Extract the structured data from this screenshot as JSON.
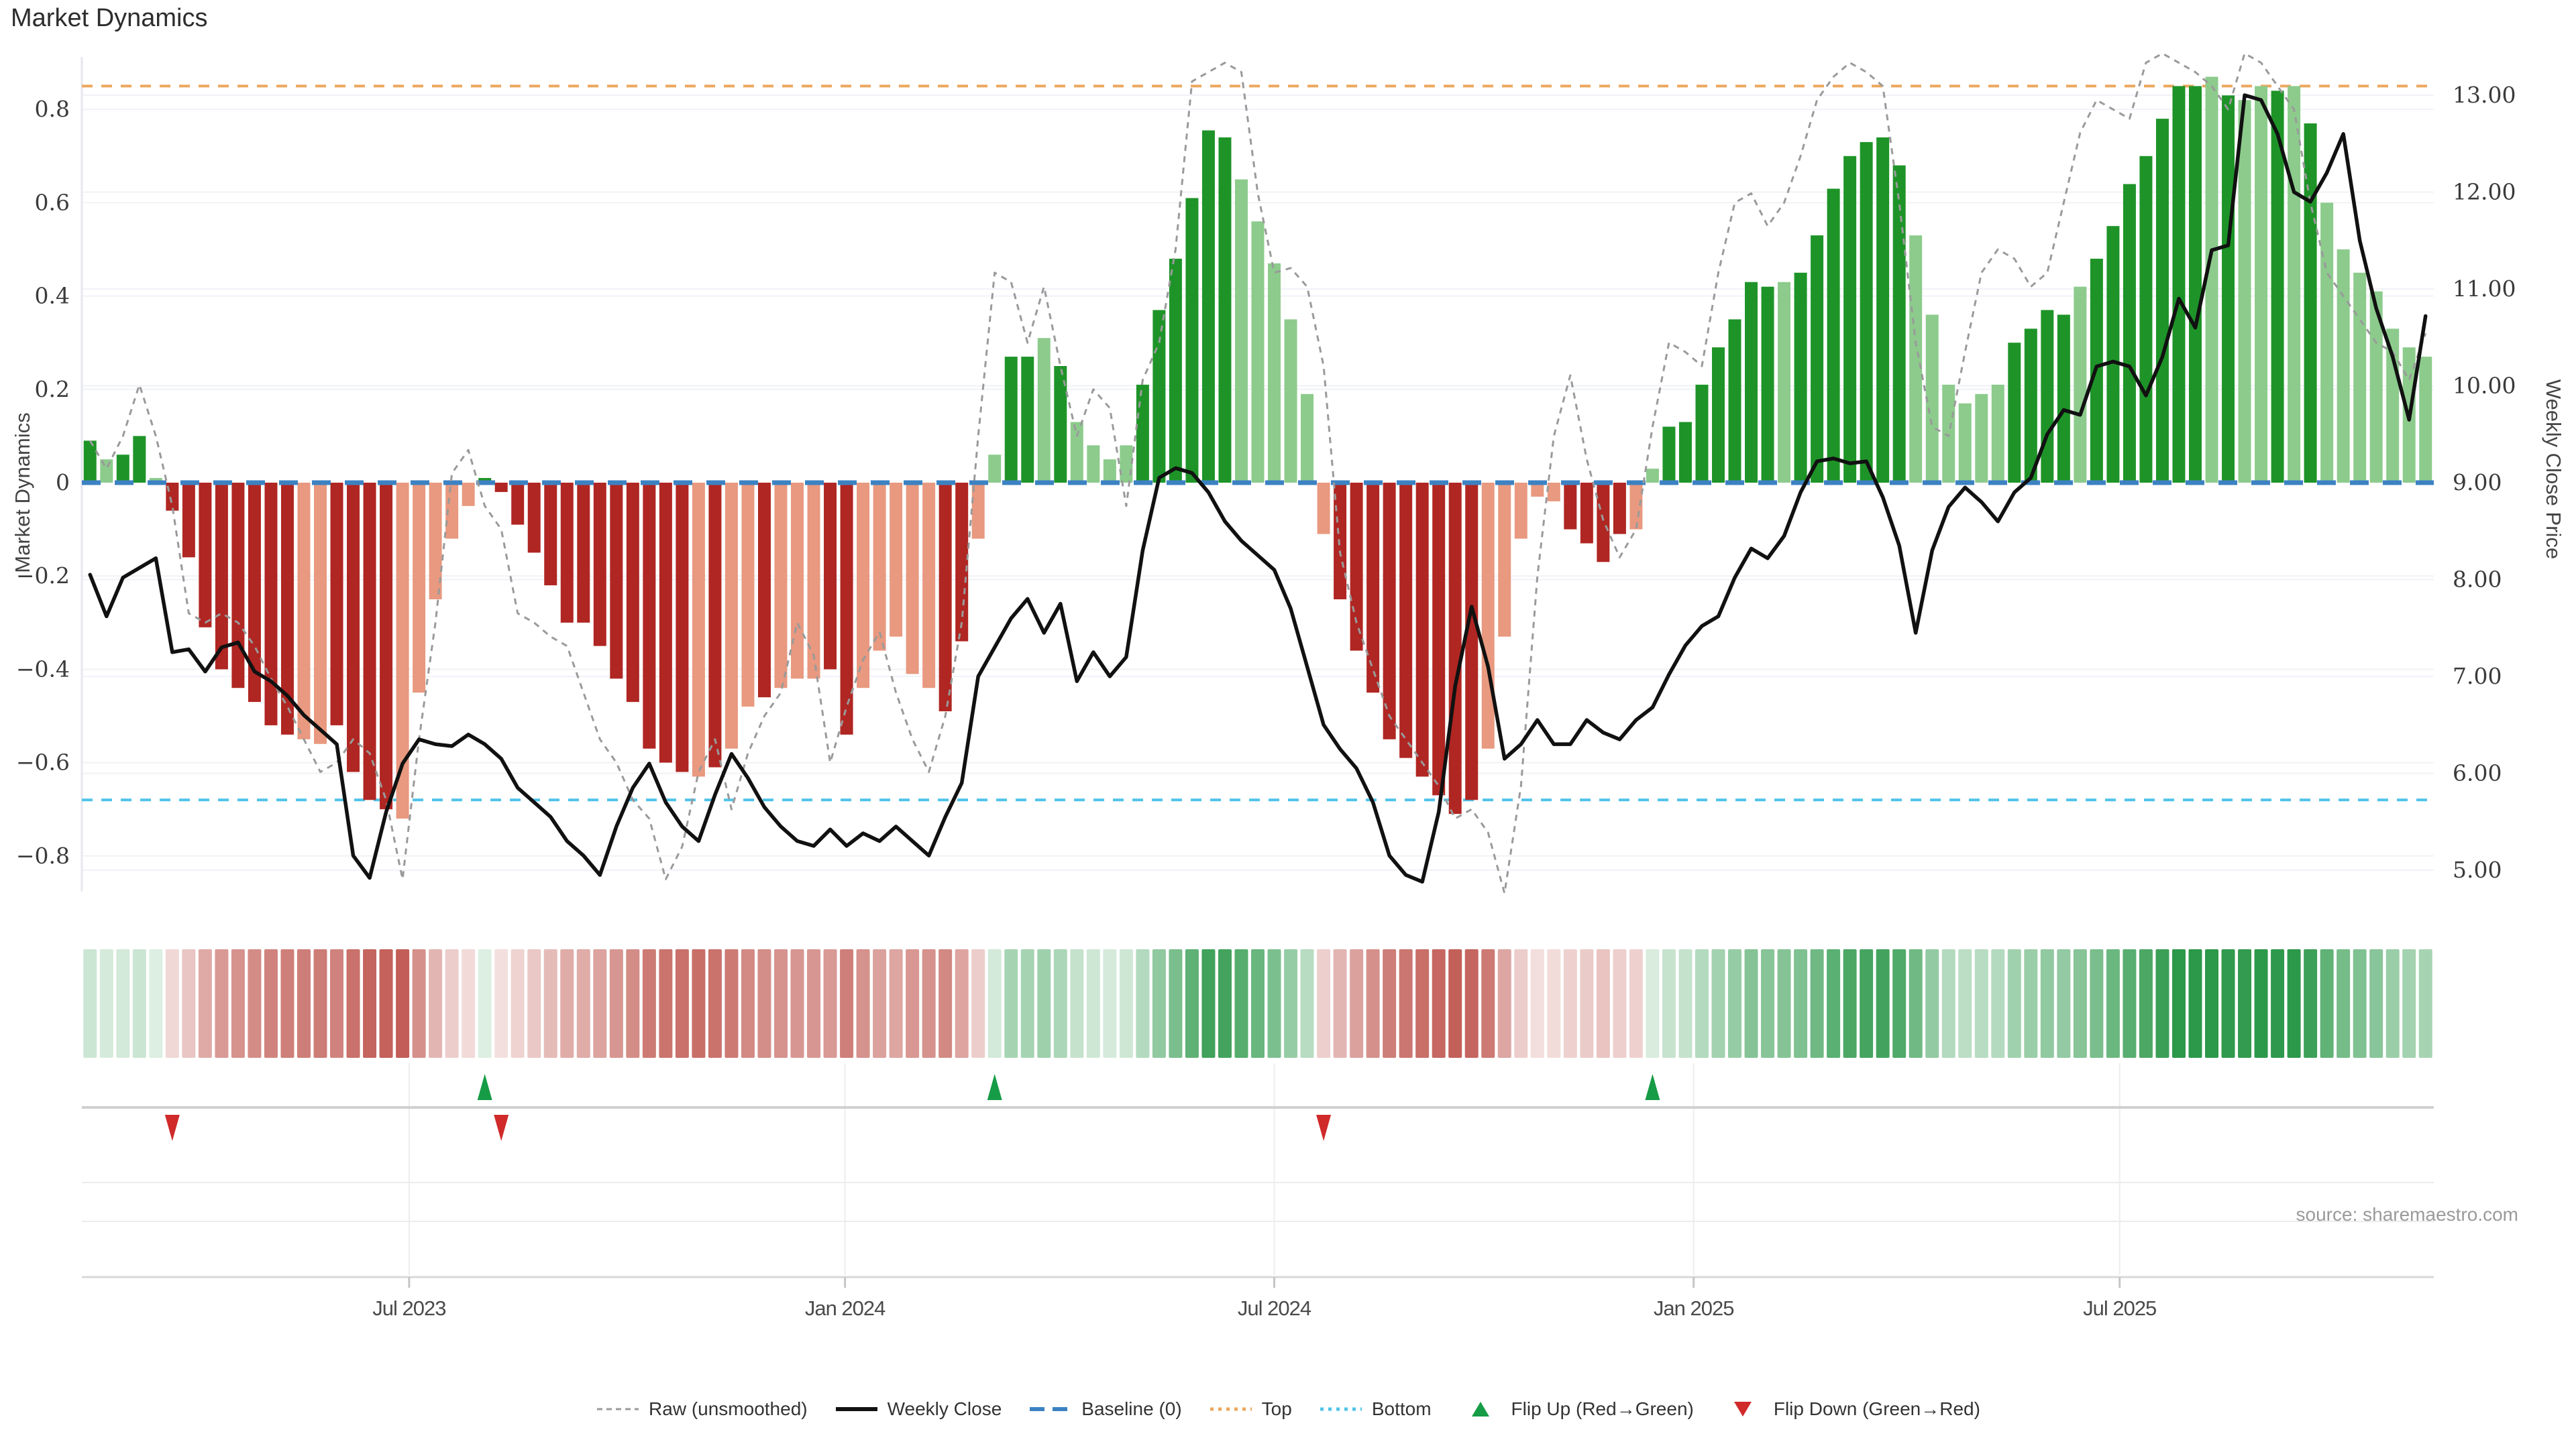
{
  "title": "Market Dynamics",
  "source": "source: sharemaestro.com",
  "axes": {
    "left": {
      "title": "Market Dynamics",
      "ticks": [
        {
          "label": "0.8",
          "value": 0.8
        },
        {
          "label": "0.6",
          "value": 0.6
        },
        {
          "label": "0.4",
          "value": 0.4
        },
        {
          "label": "0.2",
          "value": 0.2
        },
        {
          "label": "0",
          "value": 0
        },
        {
          "label": "−0.2",
          "value": -0.2
        },
        {
          "label": "−0.4",
          "value": -0.4
        },
        {
          "label": "−0.6",
          "value": -0.6
        },
        {
          "label": "−0.8",
          "value": -0.8
        }
      ],
      "range": [
        -0.92,
        0.92
      ]
    },
    "right": {
      "title": "Weekly Close Price",
      "ticks": [
        {
          "label": "13.00",
          "value": 13
        },
        {
          "label": "12.00",
          "value": 12
        },
        {
          "label": "11.00",
          "value": 11
        },
        {
          "label": "10.00",
          "value": 10
        },
        {
          "label": "9.00",
          "value": 9
        },
        {
          "label": "8.00",
          "value": 8
        },
        {
          "label": "7.00",
          "value": 7
        },
        {
          "label": "6.00",
          "value": 6
        },
        {
          "label": "5.00",
          "value": 5
        }
      ],
      "range": [
        4.6,
        13.4
      ]
    },
    "x": {
      "ticks": [
        {
          "label": "Jul 2023",
          "week": 19.4
        },
        {
          "label": "Jan 2024",
          "week": 45.9
        },
        {
          "label": "Jul 2024",
          "week": 72.0
        },
        {
          "label": "Jan 2025",
          "week": 97.5
        },
        {
          "label": "Jul 2025",
          "week": 123.4
        }
      ]
    }
  },
  "chart_data": {
    "type": "combo",
    "weeks": 143,
    "title": "Market Dynamics",
    "grid": true,
    "legend_position": "bottom",
    "thresholds": {
      "baseline": 0,
      "top": 0.85,
      "bottom": -0.68
    },
    "bar_values": [
      0.09,
      0.05,
      0.06,
      0.1,
      0.01,
      -0.06,
      -0.16,
      -0.31,
      -0.4,
      -0.44,
      -0.47,
      -0.52,
      -0.54,
      -0.55,
      -0.56,
      -0.52,
      -0.62,
      -0.68,
      -0.7,
      -0.72,
      -0.45,
      -0.25,
      -0.12,
      -0.05,
      0.01,
      -0.02,
      -0.09,
      -0.15,
      -0.22,
      -0.3,
      -0.3,
      -0.35,
      -0.42,
      -0.47,
      -0.57,
      -0.6,
      -0.62,
      -0.63,
      -0.61,
      -0.57,
      -0.48,
      -0.46,
      -0.44,
      -0.42,
      -0.42,
      -0.4,
      -0.54,
      -0.44,
      -0.36,
      -0.33,
      -0.41,
      -0.44,
      -0.49,
      -0.34,
      -0.12,
      0.06,
      0.27,
      0.27,
      0.31,
      0.25,
      0.13,
      0.08,
      0.05,
      0.08,
      0.21,
      0.37,
      0.48,
      0.61,
      0.755,
      0.74,
      0.65,
      0.56,
      0.47,
      0.35,
      0.19,
      -0.11,
      -0.25,
      -0.36,
      -0.45,
      -0.55,
      -0.59,
      -0.63,
      -0.67,
      -0.71,
      -0.68,
      -0.57,
      -0.33,
      -0.12,
      -0.03,
      -0.04,
      -0.1,
      -0.13,
      -0.17,
      -0.11,
      -0.1,
      0.03,
      0.12,
      0.13,
      0.21,
      0.29,
      0.35,
      0.43,
      0.42,
      0.43,
      0.45,
      0.53,
      0.63,
      0.7,
      0.73,
      0.74,
      0.68,
      0.53,
      0.36,
      0.21,
      0.17,
      0.19,
      0.21,
      0.3,
      0.33,
      0.37,
      0.36,
      0.42,
      0.48,
      0.55,
      0.64,
      0.7,
      0.78,
      0.85,
      0.85,
      0.87,
      0.83,
      0.82,
      0.85,
      0.84,
      0.85,
      0.77,
      0.6,
      0.5,
      0.45,
      0.41,
      0.33,
      0.29,
      0.27
    ],
    "bar_shades": "dlddlddddddddllddddllllldddddddddddddldlldlllddlllllddllddldllllddddddlllllldddddddddlllllddddlldddddddldddddddllllllddddlddddddd ldlldldllllllll",
    "raw": [
      0.09,
      0.03,
      0.1,
      0.21,
      0.1,
      -0.05,
      -0.28,
      -0.3,
      -0.28,
      -0.3,
      -0.35,
      -0.42,
      -0.48,
      -0.55,
      -0.62,
      -0.6,
      -0.55,
      -0.58,
      -0.68,
      -0.85,
      -0.55,
      -0.3,
      0.02,
      0.07,
      -0.05,
      -0.1,
      -0.28,
      -0.3,
      -0.33,
      -0.35,
      -0.45,
      -0.55,
      -0.6,
      -0.68,
      -0.72,
      -0.85,
      -0.78,
      -0.62,
      -0.55,
      -0.7,
      -0.58,
      -0.5,
      -0.45,
      -0.3,
      -0.37,
      -0.6,
      -0.48,
      -0.38,
      -0.32,
      -0.45,
      -0.55,
      -0.62,
      -0.5,
      -0.3,
      0.1,
      0.45,
      0.43,
      0.3,
      0.42,
      0.25,
      0.1,
      0.2,
      0.16,
      -0.05,
      0.22,
      0.3,
      0.5,
      0.86,
      0.88,
      0.9,
      0.88,
      0.62,
      0.45,
      0.46,
      0.42,
      0.25,
      -0.15,
      -0.3,
      -0.4,
      -0.5,
      -0.55,
      -0.6,
      -0.65,
      -0.72,
      -0.7,
      -0.75,
      -0.88,
      -0.65,
      -0.2,
      0.1,
      0.23,
      0.05,
      -0.08,
      -0.16,
      -0.1,
      0.12,
      0.3,
      0.28,
      0.25,
      0.45,
      0.6,
      0.62,
      0.55,
      0.6,
      0.7,
      0.82,
      0.87,
      0.9,
      0.88,
      0.85,
      0.6,
      0.3,
      0.12,
      0.1,
      0.28,
      0.45,
      0.5,
      0.48,
      0.42,
      0.45,
      0.6,
      0.75,
      0.82,
      0.8,
      0.78,
      0.9,
      0.92,
      0.9,
      0.88,
      0.85,
      0.8,
      0.92,
      0.9,
      0.85,
      0.8,
      0.6,
      0.45,
      0.4,
      0.35,
      0.3,
      0.28,
      0.22,
      0.32
    ],
    "price": [
      8.05,
      7.62,
      8.02,
      8.12,
      8.22,
      7.25,
      7.28,
      7.05,
      7.3,
      7.35,
      7.05,
      6.95,
      6.8,
      6.6,
      6.45,
      6.3,
      5.15,
      4.92,
      5.6,
      6.1,
      6.35,
      6.3,
      6.28,
      6.4,
      6.3,
      6.15,
      5.85,
      5.7,
      5.55,
      5.3,
      5.15,
      4.95,
      5.45,
      5.85,
      6.1,
      5.7,
      5.45,
      5.3,
      5.78,
      6.2,
      5.95,
      5.65,
      5.45,
      5.3,
      5.25,
      5.42,
      5.25,
      5.38,
      5.3,
      5.45,
      5.3,
      5.15,
      5.55,
      5.9,
      7.0,
      7.3,
      7.6,
      7.8,
      7.45,
      7.75,
      6.95,
      7.25,
      7.0,
      7.2,
      8.3,
      9.05,
      9.15,
      9.1,
      8.9,
      8.6,
      8.4,
      8.25,
      8.1,
      7.7,
      7.1,
      6.5,
      6.25,
      6.05,
      5.7,
      5.15,
      4.95,
      4.88,
      5.6,
      6.9,
      7.72,
      7.1,
      6.15,
      6.3,
      6.55,
      6.3,
      6.3,
      6.55,
      6.42,
      6.35,
      6.55,
      6.68,
      7.02,
      7.32,
      7.52,
      7.62,
      8.02,
      8.32,
      8.22,
      8.45,
      8.9,
      9.22,
      9.25,
      9.2,
      9.22,
      8.85,
      8.35,
      7.45,
      8.3,
      8.75,
      8.95,
      8.8,
      8.6,
      8.9,
      9.05,
      9.5,
      9.75,
      9.7,
      10.2,
      10.25,
      10.2,
      9.9,
      10.3,
      10.9,
      10.6,
      11.4,
      11.45,
      13.0,
      12.95,
      12.6,
      12.0,
      11.9,
      12.2,
      12.6,
      11.5,
      10.8,
      10.3,
      9.65,
      10.72
    ],
    "flip_up_weeks": [
      24,
      55,
      95
    ],
    "flip_down_weeks": [
      5,
      25,
      75
    ]
  },
  "colors": {
    "bar_pos_dark": "#1e9428",
    "bar_pos_light": "#8ccb8c",
    "bar_neg_dark": "#b02622",
    "bar_neg_light": "#e8997f",
    "baseline": "#3c82c3",
    "top_line": "#eda75e",
    "bottom_line": "#4fc3e8",
    "raw_line": "#9a9a9a",
    "price_line": "#111111",
    "flip_up": "#169c46",
    "flip_down": "#d02a2a",
    "heat_pos": [
      44,
      152,
      74
    ],
    "heat_neg": [
      185,
      70,
      62
    ],
    "grid": "#f0f2f7",
    "axis_text": "#3a3a3a",
    "date_text": "#4a4a4a"
  },
  "legend": {
    "items": [
      {
        "label": "Raw (unsmoothed)",
        "glyph": "dash-gray"
      },
      {
        "label": "Weekly Close",
        "glyph": "solid-black"
      },
      {
        "label": "Baseline (0)",
        "glyph": "dash-blue"
      },
      {
        "label": "Top",
        "glyph": "dot-orange"
      },
      {
        "label": "Bottom",
        "glyph": "dot-cyan"
      },
      {
        "label": "Flip Up (Red→Green)",
        "glyph": "tri-up"
      },
      {
        "label": "Flip Down (Green→Red)",
        "glyph": "tri-down"
      }
    ]
  }
}
